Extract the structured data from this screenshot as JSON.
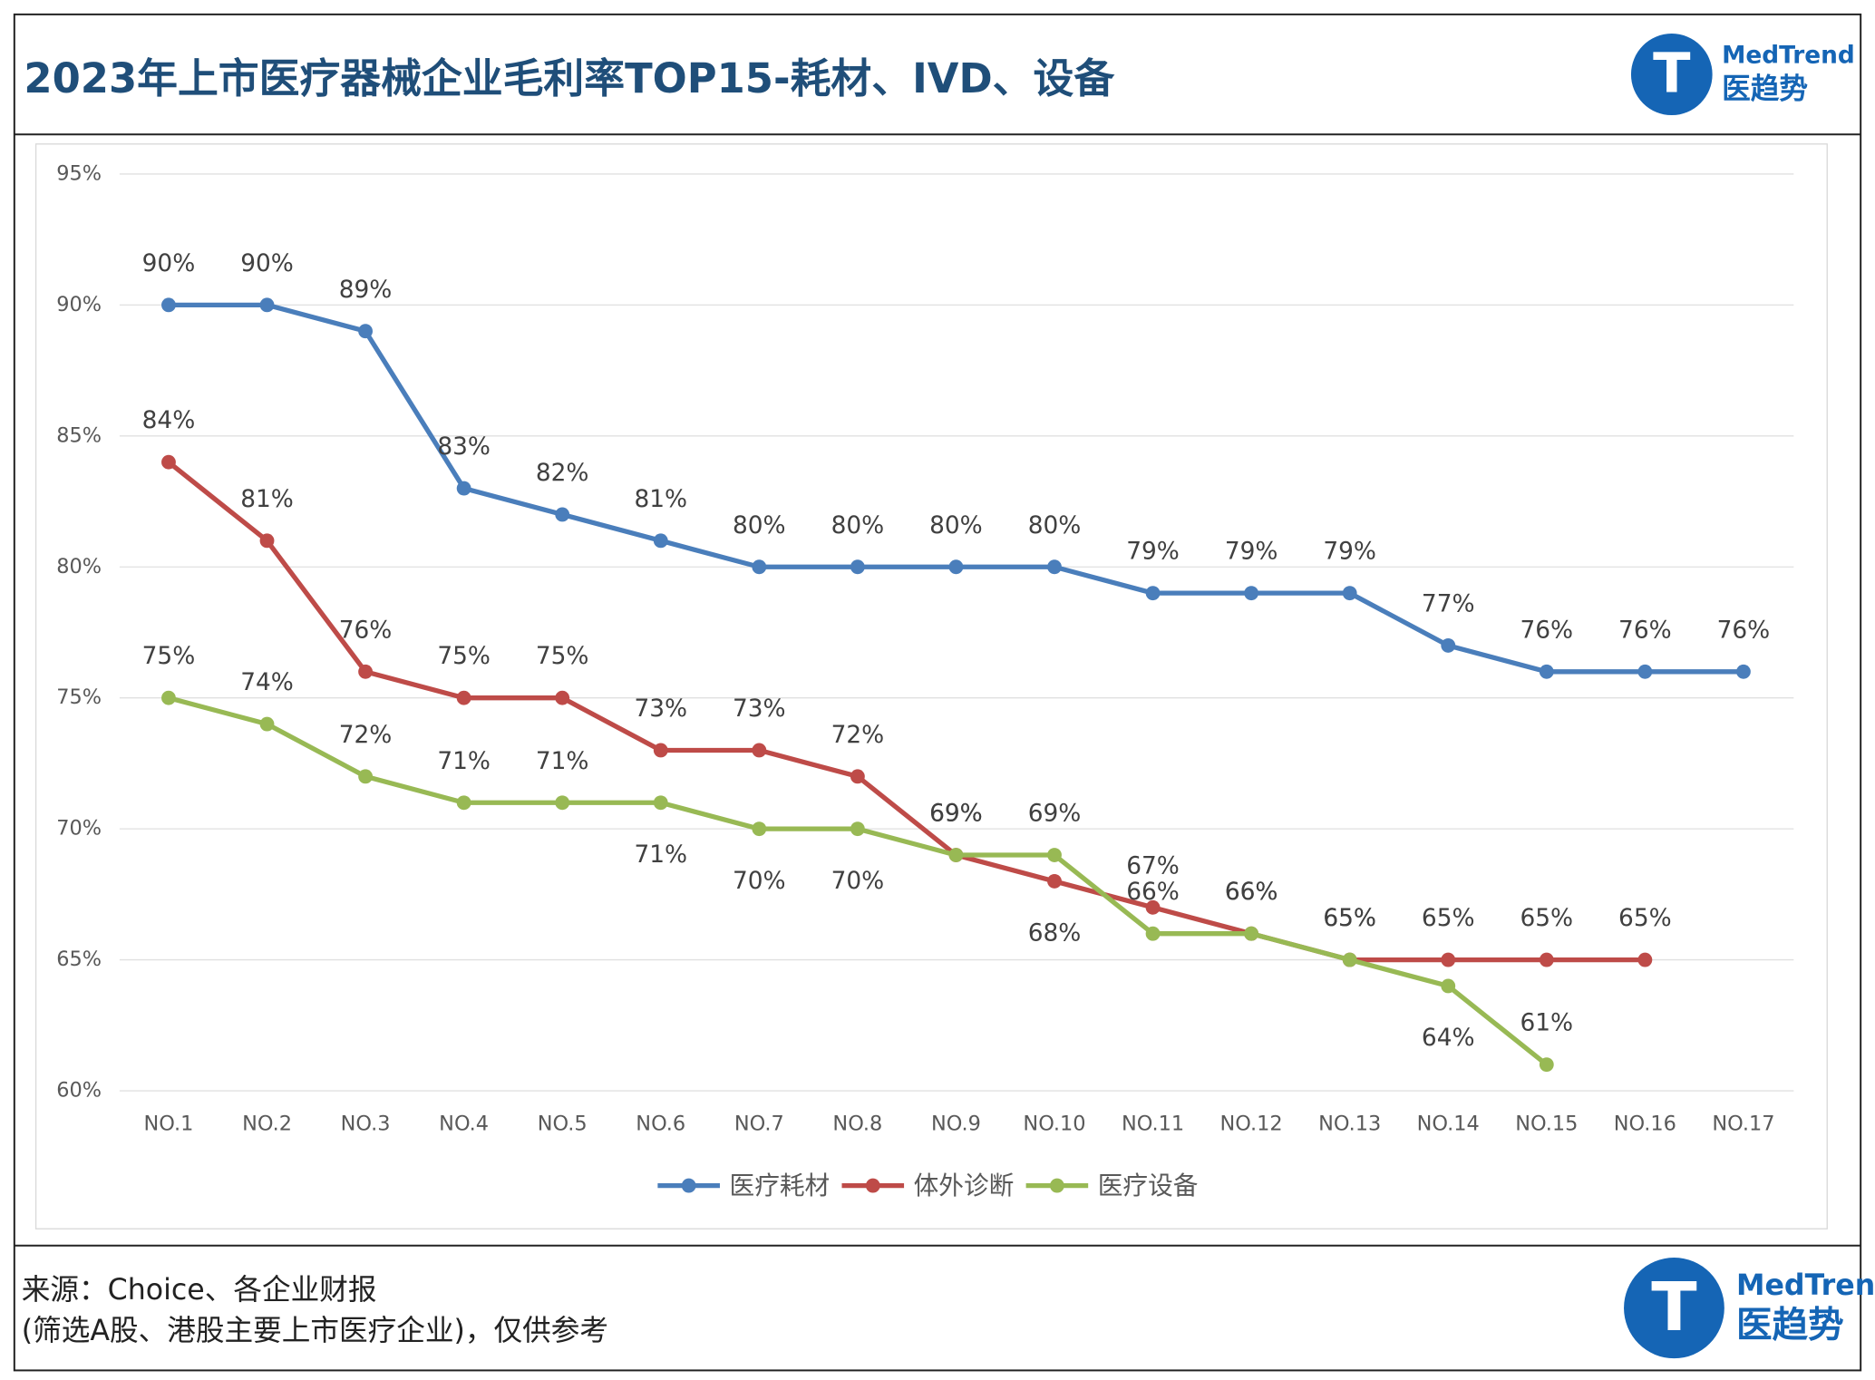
{
  "chart_data": {
    "type": "line",
    "title": "2023年上市医疗器械企业毛利率TOP15-耗材、IVD、设备",
    "logo": {
      "brand": "MedTrend",
      "name": "医趋势"
    },
    "source": [
      "来源：Choice、各企业财报",
      "(筛选A股、港股主要上市医疗企业)，仅供参考"
    ],
    "categories": [
      "NO.1",
      "NO.2",
      "NO.3",
      "NO.4",
      "NO.5",
      "NO.6",
      "NO.7",
      "NO.8",
      "NO.9",
      "NO.10",
      "NO.11",
      "NO.12",
      "NO.13",
      "NO.14",
      "NO.15",
      "NO.16",
      "NO.17"
    ],
    "series": [
      {
        "name": "医疗耗材",
        "color": "#4a7ebb",
        "values": [
          90,
          90,
          89,
          83,
          82,
          81,
          80,
          80,
          80,
          80,
          79,
          79,
          79,
          77,
          76,
          76,
          76
        ],
        "value_labels": [
          "90%",
          "90%",
          "89%",
          "83%",
          "82%",
          "81%",
          "80%",
          "80%",
          "80%",
          "80%",
          "79%",
          "79%",
          "79%",
          "77%",
          "76%",
          "76%",
          "76%"
        ]
      },
      {
        "name": "体外诊断",
        "color": "#be4b48",
        "values": [
          84,
          81,
          76,
          75,
          75,
          73,
          73,
          72,
          69,
          68,
          67,
          66,
          65,
          65,
          65,
          65,
          null
        ],
        "value_labels": [
          "84%",
          "81%",
          "76%",
          "75%",
          "75%",
          "73%",
          "73%",
          "72%",
          "69%",
          "68%",
          "67%",
          "66%",
          "65%",
          "65%",
          "65%",
          "65%",
          null
        ]
      },
      {
        "name": "医疗设备",
        "color": "#98b954",
        "values": [
          75,
          74,
          72,
          71,
          71,
          71,
          70,
          70,
          69,
          69,
          66,
          66,
          65,
          64,
          61,
          null,
          null
        ],
        "value_labels": [
          "75%",
          "74%",
          "72%",
          "71%",
          "71%",
          "71%",
          "70%",
          "70%",
          "69%",
          "69%",
          "66%",
          "66%",
          "65%",
          "64%",
          "61%",
          null,
          null
        ]
      }
    ],
    "ylim": [
      60,
      95
    ],
    "yticks": [
      {
        "value": 60,
        "label": "60%"
      },
      {
        "value": 65,
        "label": "65%"
      },
      {
        "value": 70,
        "label": "70%"
      },
      {
        "value": 75,
        "label": "75%"
      },
      {
        "value": 80,
        "label": "80%"
      },
      {
        "value": 85,
        "label": "85%"
      },
      {
        "value": 90,
        "label": "90%"
      },
      {
        "value": 95,
        "label": "95%"
      }
    ],
    "grid": true,
    "legend": "bottom"
  }
}
